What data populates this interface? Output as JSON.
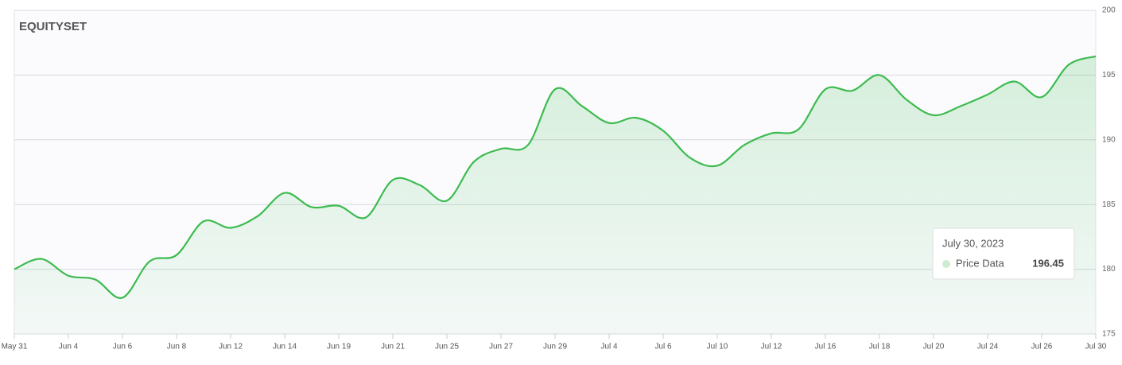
{
  "chart_data": {
    "type": "area",
    "brand": "EQUITYSET",
    "categories": [
      "May 31",
      null,
      "Jun 4",
      null,
      "Jun 6",
      null,
      "Jun 8",
      null,
      "Jun 12",
      null,
      "Jun 14",
      null,
      "Jun 19",
      null,
      "Jun 21",
      null,
      "Jun 25",
      null,
      "Jun 27",
      null,
      "Jun 29",
      null,
      "Jul 4",
      null,
      "Jul 6",
      null,
      "Jul 10",
      null,
      "Jul 12",
      null,
      "Jul 16",
      null,
      "Jul 18",
      null,
      "Jul 20",
      null,
      "Jul 24",
      null,
      "Jul 26",
      null,
      "Jul 30"
    ],
    "series": [
      {
        "name": "Price Data",
        "color": "#3dbb4f",
        "values": [
          180.0,
          180.8,
          179.5,
          179.2,
          177.8,
          180.6,
          181.1,
          183.7,
          183.2,
          184.1,
          185.9,
          184.8,
          184.9,
          184.0,
          186.9,
          186.5,
          185.3,
          188.3,
          189.3,
          189.6,
          193.9,
          192.6,
          191.3,
          191.7,
          190.7,
          188.6,
          188.0,
          189.6,
          190.5,
          190.8,
          193.9,
          193.8,
          195.0,
          193.1,
          191.9,
          192.6,
          193.5,
          194.5,
          193.3,
          195.8,
          196.45
        ]
      }
    ],
    "ylim": [
      175,
      200
    ],
    "yticks": [
      175,
      180,
      185,
      190,
      195,
      200
    ],
    "grid": true,
    "tooltip": {
      "title": "July 30, 2023"
    }
  }
}
